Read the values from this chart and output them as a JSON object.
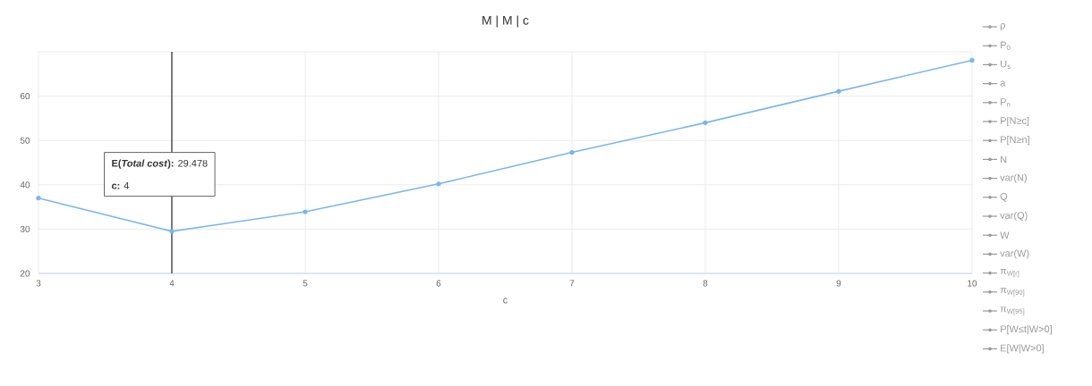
{
  "chart_data": {
    "type": "line",
    "title": "M | M | c",
    "xlabel": "c",
    "x": [
      3,
      4,
      5,
      6,
      7,
      8,
      9,
      10
    ],
    "xlim": [
      3,
      10
    ],
    "xticks": [
      3,
      4,
      5,
      6,
      7,
      8,
      9,
      10
    ],
    "ylim": [
      20,
      70
    ],
    "yticks": [
      20,
      30,
      40,
      50,
      60,
      {
        "value": 70,
        "label": null
      }
    ],
    "grid": true,
    "legend": "right",
    "marker": "circle",
    "line_style": "solid",
    "ref_lines": [
      {
        "axis": "x",
        "value": 4,
        "color": "#000000"
      }
    ],
    "annotations": [
      "**E(*Total cost*):** 29.478",
      "**c:** 4"
    ],
    "series": [
      {
        "color": "#7cb5ec",
        "values": [
          37.0,
          29.5,
          33.9,
          40.2,
          47.3,
          54.0,
          61.1,
          68.1
        ]
      },
      {
        "name": "ρ",
        "color": "#999999",
        "values": [
          null,
          null,
          null,
          null,
          null,
          null,
          null,
          null
        ]
      },
      {
        "name": "P$_{0}$",
        "color": "#999999",
        "values": [
          null,
          null,
          null,
          null,
          null,
          null,
          null,
          null
        ]
      },
      {
        "name": "U$_{s}$",
        "color": "#999999",
        "values": [
          null,
          null,
          null,
          null,
          null,
          null,
          null,
          null
        ]
      },
      {
        "name": "a",
        "color": "#999999",
        "values": [
          null,
          null,
          null,
          null,
          null,
          null,
          null,
          null
        ]
      },
      {
        "name": "P$_{n}$",
        "color": "#999999",
        "values": [
          null,
          null,
          null,
          null,
          null,
          null,
          null,
          null
        ]
      },
      {
        "name": "P[N≥c]",
        "color": "#999999",
        "values": [
          null,
          null,
          null,
          null,
          null,
          null,
          null,
          null
        ]
      },
      {
        "name": "P[N≥n]",
        "color": "#999999",
        "values": [
          null,
          null,
          null,
          null,
          null,
          null,
          null,
          null
        ]
      },
      {
        "name": "N",
        "color": "#999999",
        "values": [
          null,
          null,
          null,
          null,
          null,
          null,
          null,
          null
        ]
      },
      {
        "name": "var(N)",
        "color": "#999999",
        "values": [
          null,
          null,
          null,
          null,
          null,
          null,
          null,
          null
        ]
      },
      {
        "name": "Q",
        "color": "#999999",
        "values": [
          null,
          null,
          null,
          null,
          null,
          null,
          null,
          null
        ]
      },
      {
        "name": "var(Q)",
        "color": "#999999",
        "values": [
          null,
          null,
          null,
          null,
          null,
          null,
          null,
          null
        ]
      },
      {
        "name": "W",
        "color": "#999999",
        "values": [
          null,
          null,
          null,
          null,
          null,
          null,
          null,
          null
        ]
      },
      {
        "name": "var(W)",
        "color": "#999999",
        "values": [
          null,
          null,
          null,
          null,
          null,
          null,
          null,
          null
        ]
      },
      {
        "name": "π$_{W[r]}$",
        "color": "#999999",
        "values": [
          null,
          null,
          null,
          null,
          null,
          null,
          null,
          null
        ]
      },
      {
        "name": "π$_{W[90]}$",
        "color": "#999999",
        "values": [
          null,
          null,
          null,
          null,
          null,
          null,
          null,
          null
        ]
      },
      {
        "name": "π$_{W[95]}$",
        "color": "#999999",
        "values": [
          null,
          null,
          null,
          null,
          null,
          null,
          null,
          null
        ]
      },
      {
        "name": "P[W≤t|W>0]",
        "color": "#999999",
        "values": [
          null,
          null,
          null,
          null,
          null,
          null,
          null,
          null
        ]
      },
      {
        "name": "E[W|W>0]",
        "color": "#999999",
        "values": [
          null,
          null,
          null,
          null,
          null,
          null,
          null,
          null
        ]
      }
    ]
  }
}
